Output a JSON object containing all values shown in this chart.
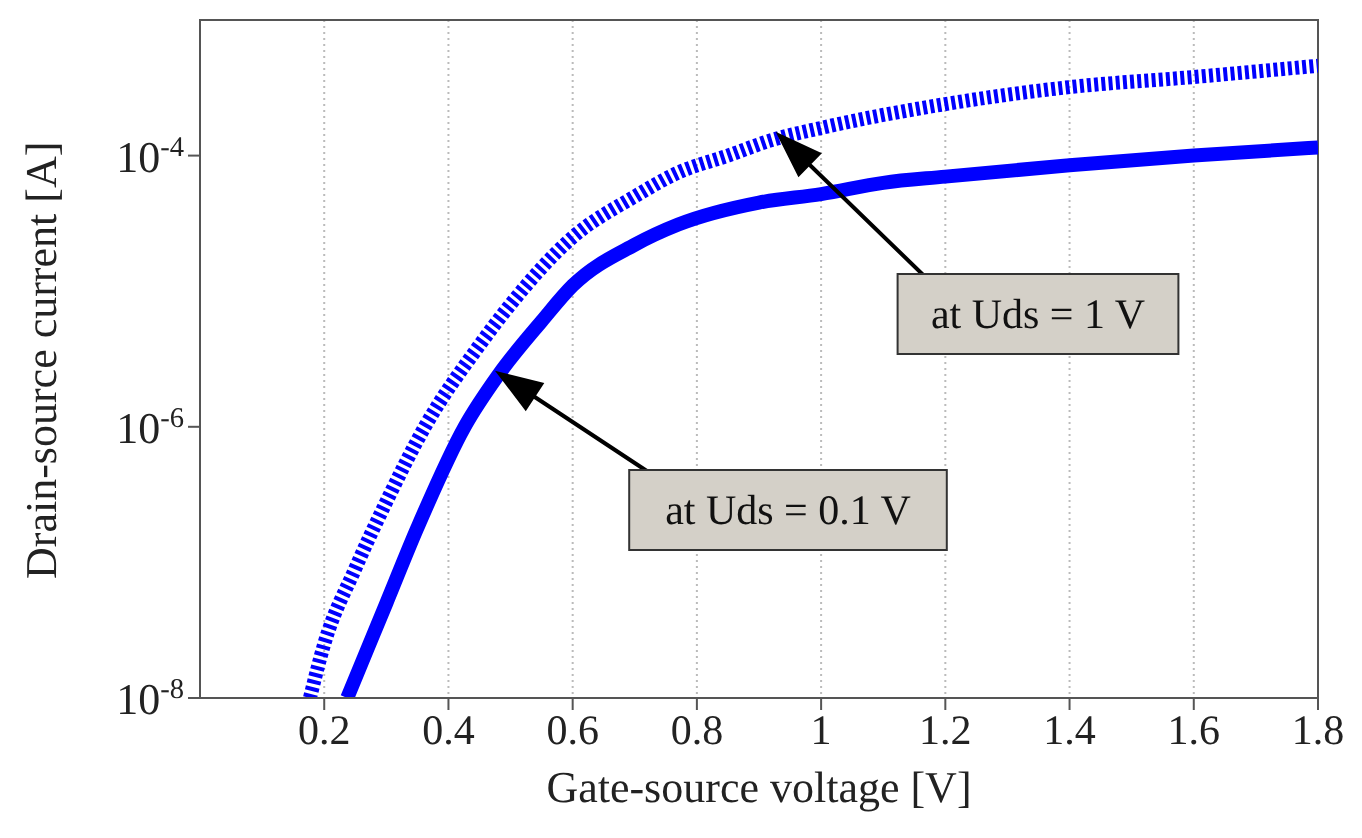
{
  "chart_data": {
    "type": "line",
    "xlabel": "Gate-source voltage [V]",
    "ylabel": "Drain-source current [A]",
    "xlim": [
      0,
      1.8
    ],
    "xticks": [
      0.2,
      0.4,
      0.6,
      0.8,
      1,
      1.2,
      1.4,
      1.6,
      1.8
    ],
    "ylim": [
      1e-08,
      0.001
    ],
    "yticks": [
      {
        "value": 1e-08,
        "label": "10$^{-8}$"
      },
      {
        "value": 1e-06,
        "label": "10$^{-6}$"
      },
      {
        "value": 0.0001,
        "label": "10$^{-4}$"
      }
    ],
    "log": "y",
    "grid": "x",
    "legend": false,
    "marker": "none",
    "series": [
      {
        "color": "#0000ff",
        "line_style": "solid",
        "x": [
          0.237,
          0.26,
          0.3,
          0.35,
          0.426,
          0.48,
          0.55,
          0.6,
          0.7,
          0.77,
          0.9,
          1.0,
          1.1,
          1.2,
          1.4,
          1.6,
          1.8
        ],
        "values": [
          1e-08,
          1.8e-08,
          5e-08,
          1.8e-07,
          1e-06,
          2.4e-06,
          6e-06,
          1.1e-05,
          2.2e-05,
          3.1e-05,
          4.5e-05,
          5.2e-05,
          6.3e-05,
          7e-05,
          8.5e-05,
          0.0001,
          0.000115
        ]
      },
      {
        "color": "#0000ff",
        "line_style": "dotted",
        "x": [
          0.177,
          0.2,
          0.25,
          0.3,
          0.362,
          0.45,
          0.5,
          0.6,
          0.7,
          0.77,
          0.85,
          0.92,
          1.0,
          1.2,
          1.4,
          1.6,
          1.8
        ],
        "values": [
          1e-08,
          2.5e-08,
          9e-08,
          2.8e-07,
          1e-06,
          4e-06,
          8e-06,
          2.5e-05,
          5e-05,
          7.5e-05,
          0.0001,
          0.00013,
          0.00016,
          0.00024,
          0.00032,
          0.00038,
          0.00046
        ]
      }
    ],
    "annotations": [
      "at Uds = 0.1 V",
      "at Uds = 1 V"
    ]
  }
}
